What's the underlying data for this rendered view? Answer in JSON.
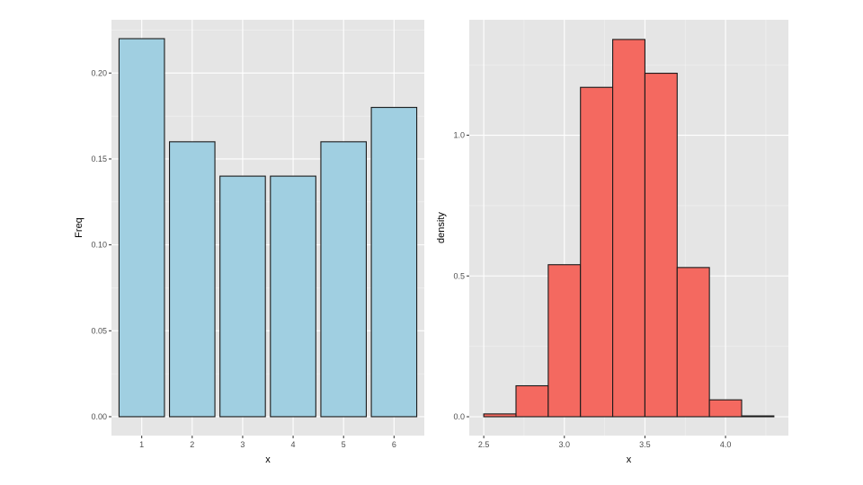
{
  "colors": {
    "panel_bg": "#e5e5e5",
    "grid_major": "#ffffff",
    "grid_minor": "#f2f2f2",
    "tick": "#333333",
    "left_fill": "#a0cfe1",
    "right_fill": "#f46960",
    "bar_stroke": "#1a1a1a"
  },
  "chart_data": [
    {
      "type": "bar",
      "xlabel": "x",
      "ylabel": "Freq",
      "categories": [
        "1",
        "2",
        "3",
        "4",
        "5",
        "6"
      ],
      "values": [
        0.22,
        0.16,
        0.14,
        0.14,
        0.16,
        0.18
      ],
      "ylim": [
        -0.011,
        0.231
      ],
      "yticks": [
        0.0,
        0.05,
        0.1,
        0.15,
        0.2
      ],
      "ytick_labels": [
        "0.00",
        "0.05",
        "0.10",
        "0.15",
        "0.20"
      ],
      "grid": true
    },
    {
      "type": "histogram",
      "xlabel": "x",
      "ylabel": "density",
      "bin_edges": [
        2.5,
        2.7,
        2.9,
        3.1,
        3.3,
        3.5,
        3.7,
        3.9,
        4.1,
        4.3
      ],
      "values": [
        0.01,
        0.11,
        0.54,
        1.17,
        1.34,
        1.22,
        0.53,
        0.06,
        0.003
      ],
      "xlim": [
        2.41,
        4.39
      ],
      "ylim": [
        -0.067,
        1.41
      ],
      "xticks": [
        2.5,
        3.0,
        3.5,
        4.0
      ],
      "xtick_labels": [
        "2.5",
        "3.0",
        "3.5",
        "4.0"
      ],
      "yticks": [
        0.0,
        0.5,
        1.0
      ],
      "ytick_labels": [
        "0.0",
        "0.5",
        "1.0"
      ],
      "grid": true
    }
  ]
}
